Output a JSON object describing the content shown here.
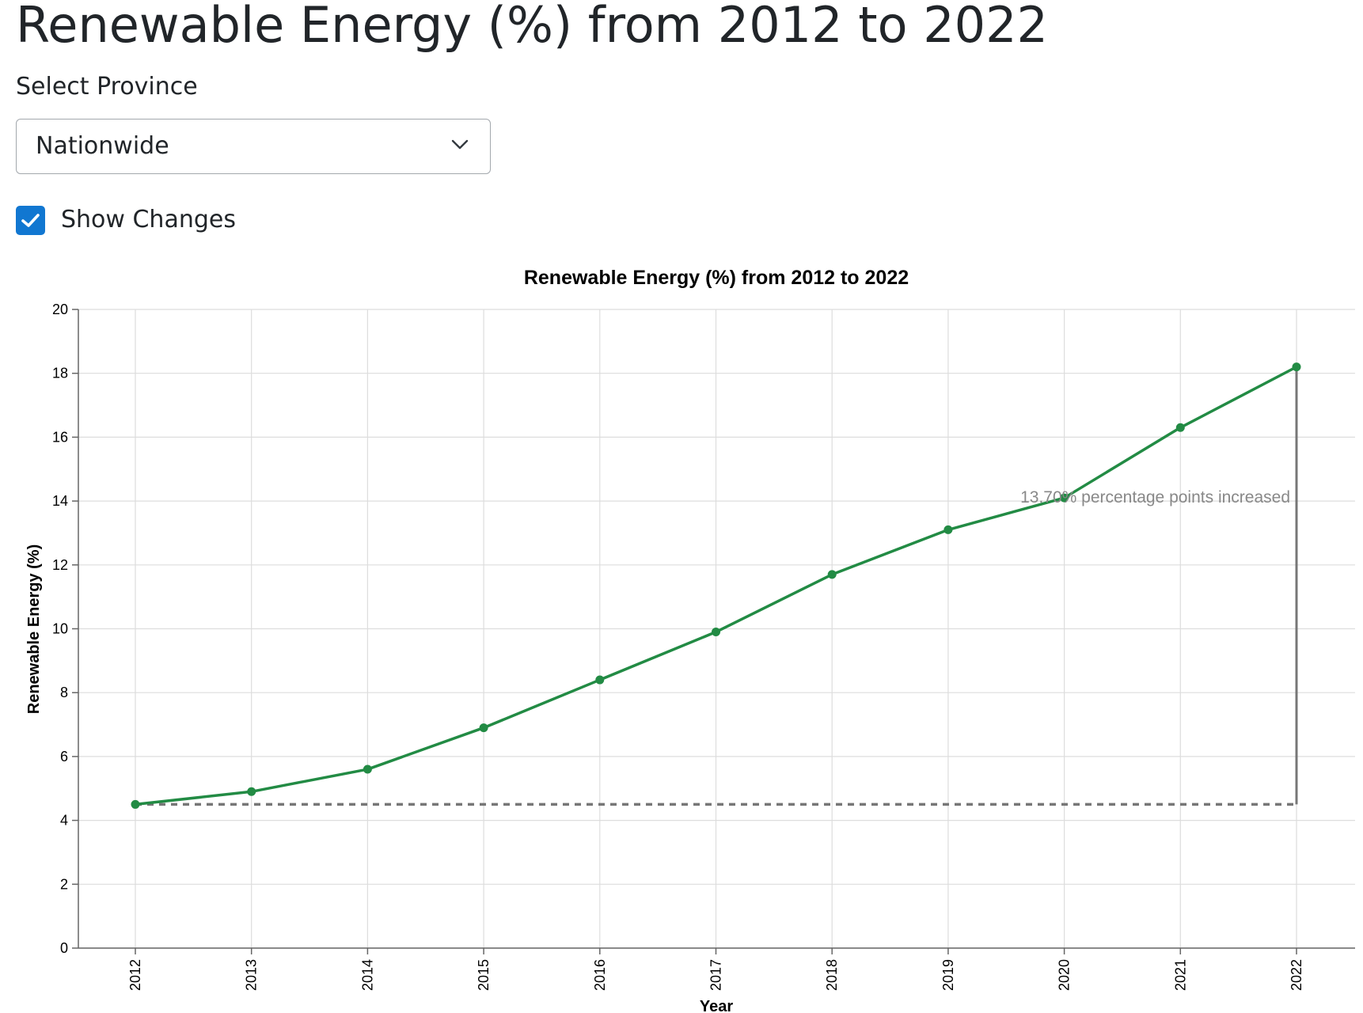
{
  "page": {
    "title": "Renewable Energy (%) from 2012 to 2022"
  },
  "controls": {
    "select_label": "Select Province",
    "province_value": "Nationwide",
    "show_changes_label": "Show Changes",
    "show_changes_checked": true
  },
  "colors": {
    "line": "#228B44",
    "reference": "#777777",
    "grid": "#dddddd",
    "checkbox": "#1177d1"
  },
  "chart_data": {
    "type": "line",
    "title": "Renewable Energy (%) from 2012 to 2022",
    "xlabel": "Year",
    "ylabel": "Renewable Energy (%)",
    "x": [
      "2012",
      "2013",
      "2014",
      "2015",
      "2016",
      "2017",
      "2018",
      "2019",
      "2020",
      "2021",
      "2022"
    ],
    "values": [
      4.5,
      4.9,
      5.6,
      6.9,
      8.4,
      9.9,
      11.7,
      13.1,
      14.1,
      16.3,
      18.2
    ],
    "ylim": [
      0,
      20
    ],
    "yticks": [
      0,
      2,
      4,
      6,
      8,
      10,
      12,
      14,
      16,
      18,
      20
    ],
    "grid": true,
    "annotation": {
      "text": "13.70% percentage points increased",
      "baseline": 4.5,
      "end_value": 18.2
    }
  }
}
